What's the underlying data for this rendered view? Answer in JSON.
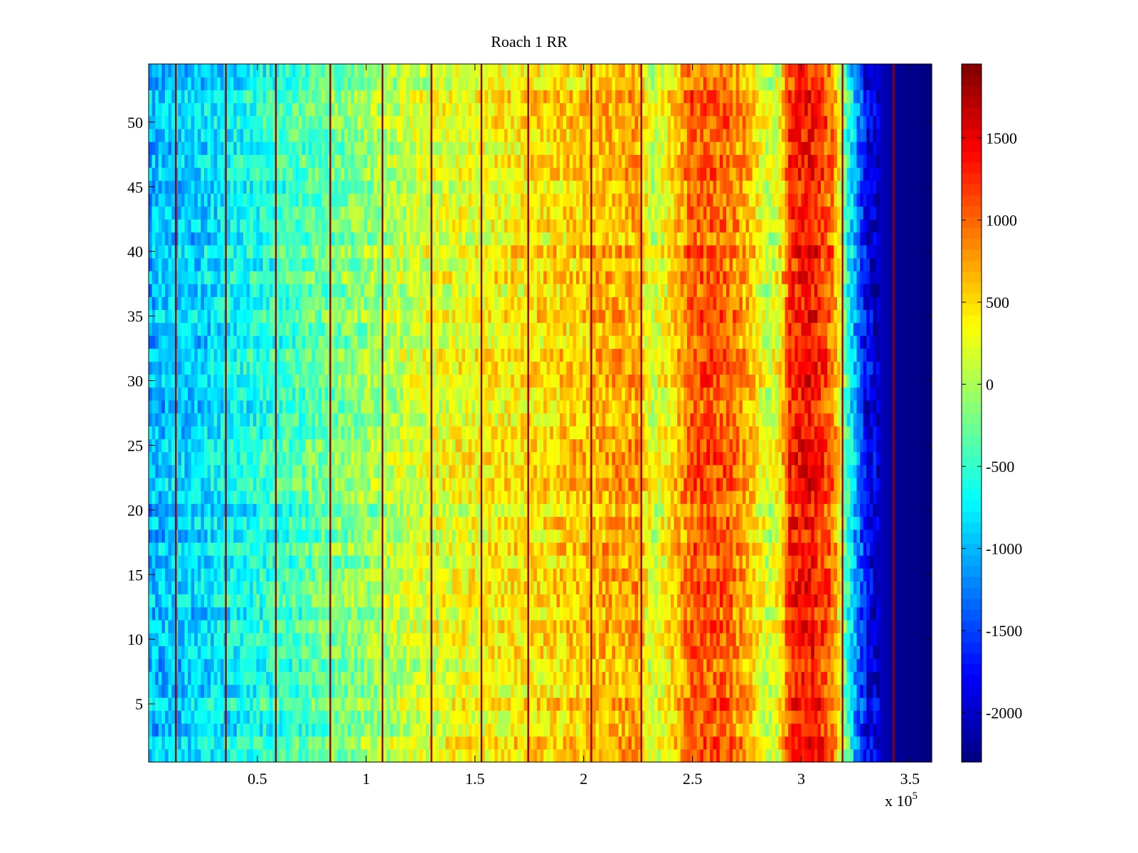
{
  "chart_data": {
    "type": "heatmap",
    "title": "Roach 1 RR",
    "x_multiplier_label": "x 10",
    "x_multiplier_exponent": "5",
    "xlim": [
      0,
      3.6
    ],
    "ylim": [
      0.5,
      54.5
    ],
    "x_ticks": [
      {
        "value": 0.5,
        "label": "0.5"
      },
      {
        "value": 1,
        "label": "1"
      },
      {
        "value": 1.5,
        "label": "1.5"
      },
      {
        "value": 2,
        "label": "2"
      },
      {
        "value": 2.5,
        "label": "2.5"
      },
      {
        "value": 3,
        "label": "3"
      },
      {
        "value": 3.5,
        "label": "3.5"
      }
    ],
    "y_ticks": [
      {
        "value": 5,
        "label": "5"
      },
      {
        "value": 10,
        "label": "10"
      },
      {
        "value": 15,
        "label": "15"
      },
      {
        "value": 20,
        "label": "20"
      },
      {
        "value": 25,
        "label": "25"
      },
      {
        "value": 30,
        "label": "30"
      },
      {
        "value": 35,
        "label": "35"
      },
      {
        "value": 40,
        "label": "40"
      },
      {
        "value": 45,
        "label": "45"
      },
      {
        "value": 50,
        "label": "50"
      }
    ],
    "colorbar": {
      "colormap": "jet",
      "range": [
        -2300,
        1950
      ],
      "ticks": [
        {
          "value": 1500,
          "label": "1500"
        },
        {
          "value": 1000,
          "label": "1000"
        },
        {
          "value": 500,
          "label": "500"
        },
        {
          "value": 0,
          "label": "0"
        },
        {
          "value": -500,
          "label": "-500"
        },
        {
          "value": -1000,
          "label": "-1000"
        },
        {
          "value": -1500,
          "label": "-1500"
        },
        {
          "value": -2000,
          "label": "-2000"
        }
      ]
    },
    "rows": 54,
    "column_profile": [
      {
        "x": 0.0,
        "value": -1000
      },
      {
        "x": 0.2,
        "value": -900
      },
      {
        "x": 0.4,
        "value": -700
      },
      {
        "x": 0.7,
        "value": -400
      },
      {
        "x": 1.0,
        "value": -100
      },
      {
        "x": 1.3,
        "value": 200
      },
      {
        "x": 1.6,
        "value": 350
      },
      {
        "x": 1.9,
        "value": 500
      },
      {
        "x": 2.1,
        "value": 650
      },
      {
        "x": 2.25,
        "value": 750
      },
      {
        "x": 2.32,
        "value": 100
      },
      {
        "x": 2.4,
        "value": 450
      },
      {
        "x": 2.5,
        "value": 1050
      },
      {
        "x": 2.65,
        "value": 1000
      },
      {
        "x": 2.75,
        "value": 700
      },
      {
        "x": 2.85,
        "value": 100
      },
      {
        "x": 2.9,
        "value": 300
      },
      {
        "x": 2.95,
        "value": 1250
      },
      {
        "x": 3.05,
        "value": 1400
      },
      {
        "x": 3.15,
        "value": 900
      },
      {
        "x": 3.2,
        "value": -300
      },
      {
        "x": 3.25,
        "value": -1100
      },
      {
        "x": 3.3,
        "value": -1800
      },
      {
        "x": 3.42,
        "value": -2200
      },
      {
        "x": 3.6,
        "value": -2300
      }
    ],
    "dark_stripes_x": [
      0.125,
      0.355,
      0.585,
      0.835,
      1.075,
      1.3,
      1.53,
      1.745,
      2.035,
      2.265,
      3.19,
      3.425
    ],
    "stripe_value": 1850
  }
}
